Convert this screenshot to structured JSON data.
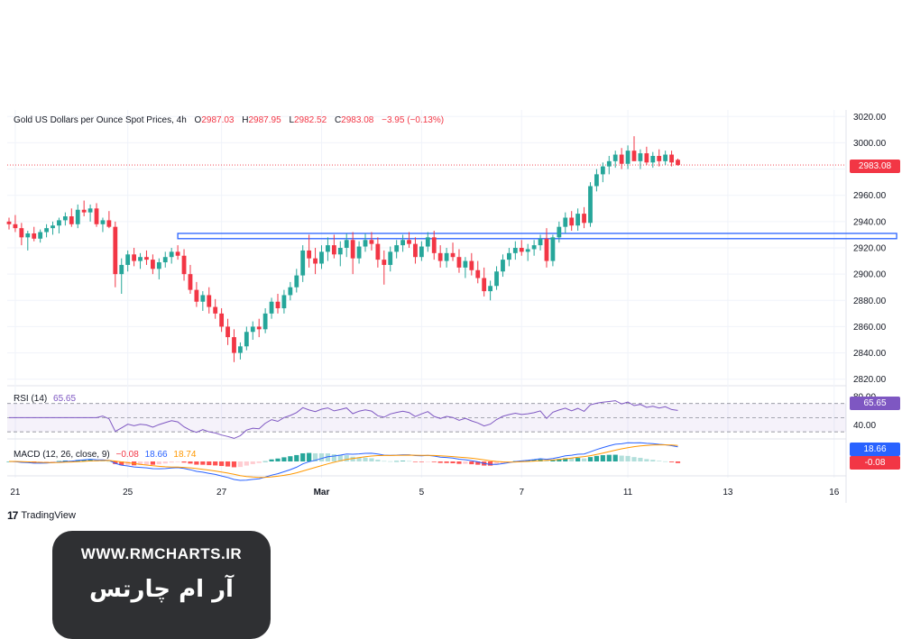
{
  "header": {
    "symbol": "Gold US Dollars per Ounce Spot Prices, 4h",
    "open_label": "O",
    "open": "2987.03",
    "high_label": "H",
    "high": "2987.95",
    "low_label": "L",
    "low": "2982.52",
    "close_label": "C",
    "close": "2983.08",
    "change": "−3.95 (−0.13%)"
  },
  "rsi": {
    "label": "RSI (14)",
    "value": "65.65"
  },
  "macd": {
    "label": "MACD (12, 26, close, 9)",
    "hist": "−0.08",
    "macd": "18.66",
    "signal": "18.74"
  },
  "price_tag": "2983.08",
  "rsi_tag": "65.65",
  "macd_tag": "18.66",
  "hist_tag": "-0.08",
  "branding": {
    "tv": "TradingView",
    "url": "WWW.RMCHARTS.IR",
    "fa": "آر ام چارتس"
  },
  "colors": {
    "up": "#26a69a",
    "down": "#f23645",
    "rsi": "#7e57c2",
    "macd": "#2962ff",
    "signal": "#ff9800",
    "zone": "#2962ff"
  },
  "chart_data": [
    {
      "type": "candlestick",
      "ylim": [
        2815,
        3025
      ],
      "y_ticks": [
        2820,
        2840,
        2860,
        2880,
        2900,
        2920,
        2940,
        2960,
        2980,
        3000,
        3020
      ],
      "y_tick_labels": [
        "2820.00",
        "2840.00",
        "2860.00",
        "2880.00",
        "2900.00",
        "2920.00",
        "2940.00",
        "2960.00",
        "2980.00",
        "3000.00",
        "3020.00"
      ],
      "x_tick_labels": [
        "21",
        "25",
        "27",
        "Mar",
        "5",
        "7",
        "11",
        "13",
        "16"
      ],
      "x_tick_bar_index": [
        1,
        19,
        34,
        50,
        66,
        82,
        99,
        115,
        132
      ],
      "resistance_zone": {
        "from": 2927,
        "to": 2931,
        "start_bar": 27,
        "end_bar": 142
      },
      "candles": [
        [
          2940,
          2943,
          2934,
          2938
        ],
        [
          2938,
          2945,
          2932,
          2935
        ],
        [
          2935,
          2939,
          2922,
          2928
        ],
        [
          2928,
          2933,
          2918,
          2931
        ],
        [
          2931,
          2936,
          2925,
          2927
        ],
        [
          2927,
          2934,
          2924,
          2932
        ],
        [
          2932,
          2938,
          2928,
          2935
        ],
        [
          2935,
          2940,
          2930,
          2937
        ],
        [
          2937,
          2943,
          2931,
          2941
        ],
        [
          2941,
          2947,
          2937,
          2944
        ],
        [
          2944,
          2950,
          2936,
          2938
        ],
        [
          2938,
          2953,
          2935,
          2949
        ],
        [
          2949,
          2956,
          2944,
          2947
        ],
        [
          2947,
          2953,
          2940,
          2950
        ],
        [
          2950,
          2954,
          2936,
          2938
        ],
        [
          2938,
          2943,
          2932,
          2941
        ],
        [
          2941,
          2948,
          2935,
          2936
        ],
        [
          2936,
          2940,
          2890,
          2900
        ],
        [
          2900,
          2912,
          2885,
          2907
        ],
        [
          2907,
          2918,
          2902,
          2915
        ],
        [
          2915,
          2920,
          2906,
          2910
        ],
        [
          2910,
          2916,
          2904,
          2913
        ],
        [
          2913,
          2918,
          2907,
          2911
        ],
        [
          2911,
          2915,
          2900,
          2904
        ],
        [
          2904,
          2912,
          2896,
          2909
        ],
        [
          2909,
          2917,
          2905,
          2913
        ],
        [
          2913,
          2920,
          2908,
          2917
        ],
        [
          2917,
          2922,
          2911,
          2914
        ],
        [
          2914,
          2919,
          2895,
          2900
        ],
        [
          2900,
          2907,
          2885,
          2888
        ],
        [
          2888,
          2894,
          2875,
          2879
        ],
        [
          2879,
          2887,
          2872,
          2884
        ],
        [
          2884,
          2890,
          2870,
          2875
        ],
        [
          2875,
          2881,
          2866,
          2870
        ],
        [
          2870,
          2874,
          2856,
          2860
        ],
        [
          2860,
          2866,
          2846,
          2852
        ],
        [
          2852,
          2858,
          2833,
          2840
        ],
        [
          2840,
          2848,
          2835,
          2845
        ],
        [
          2845,
          2860,
          2842,
          2856
        ],
        [
          2856,
          2864,
          2850,
          2860
        ],
        [
          2860,
          2866,
          2852,
          2858
        ],
        [
          2858,
          2874,
          2855,
          2870
        ],
        [
          2870,
          2882,
          2866,
          2879
        ],
        [
          2879,
          2885,
          2870,
          2874
        ],
        [
          2874,
          2888,
          2870,
          2884
        ],
        [
          2884,
          2894,
          2880,
          2890
        ],
        [
          2890,
          2904,
          2886,
          2899
        ],
        [
          2899,
          2922,
          2894,
          2918
        ],
        [
          2918,
          2930,
          2905,
          2912
        ],
        [
          2912,
          2920,
          2900,
          2908
        ],
        [
          2908,
          2922,
          2904,
          2917
        ],
        [
          2917,
          2928,
          2910,
          2922
        ],
        [
          2922,
          2930,
          2912,
          2915
        ],
        [
          2915,
          2925,
          2906,
          2920
        ],
        [
          2920,
          2931,
          2913,
          2926
        ],
        [
          2926,
          2932,
          2900,
          2912
        ],
        [
          2912,
          2925,
          2908,
          2921
        ],
        [
          2921,
          2931,
          2917,
          2926
        ],
        [
          2926,
          2932,
          2918,
          2923
        ],
        [
          2923,
          2928,
          2905,
          2911
        ],
        [
          2911,
          2918,
          2892,
          2907
        ],
        [
          2907,
          2921,
          2902,
          2917
        ],
        [
          2917,
          2926,
          2912,
          2922
        ],
        [
          2922,
          2930,
          2917,
          2926
        ],
        [
          2926,
          2932,
          2920,
          2923
        ],
        [
          2923,
          2928,
          2908,
          2913
        ],
        [
          2913,
          2925,
          2910,
          2921
        ],
        [
          2921,
          2932,
          2917,
          2928
        ],
        [
          2928,
          2933,
          2911,
          2916
        ],
        [
          2916,
          2922,
          2905,
          2910
        ],
        [
          2910,
          2920,
          2905,
          2916
        ],
        [
          2916,
          2924,
          2910,
          2913
        ],
        [
          2913,
          2919,
          2901,
          2905
        ],
        [
          2905,
          2913,
          2897,
          2910
        ],
        [
          2910,
          2916,
          2899,
          2903
        ],
        [
          2903,
          2910,
          2893,
          2897
        ],
        [
          2897,
          2905,
          2883,
          2887
        ],
        [
          2887,
          2895,
          2880,
          2891
        ],
        [
          2891,
          2906,
          2888,
          2902
        ],
        [
          2902,
          2915,
          2898,
          2911
        ],
        [
          2911,
          2920,
          2906,
          2916
        ],
        [
          2916,
          2925,
          2911,
          2920
        ],
        [
          2920,
          2926,
          2914,
          2917
        ],
        [
          2917,
          2923,
          2910,
          2919
        ],
        [
          2919,
          2926,
          2914,
          2922
        ],
        [
          2922,
          2930,
          2918,
          2927
        ],
        [
          2927,
          2935,
          2905,
          2910
        ],
        [
          2910,
          2930,
          2906,
          2928
        ],
        [
          2928,
          2940,
          2924,
          2936
        ],
        [
          2936,
          2947,
          2931,
          2943
        ],
        [
          2943,
          2948,
          2933,
          2937
        ],
        [
          2937,
          2950,
          2933,
          2946
        ],
        [
          2946,
          2951,
          2935,
          2939
        ],
        [
          2939,
          2970,
          2936,
          2967
        ],
        [
          2967,
          2980,
          2963,
          2976
        ],
        [
          2976,
          2985,
          2970,
          2982
        ],
        [
          2982,
          2990,
          2976,
          2986
        ],
        [
          2986,
          2994,
          2981,
          2991
        ],
        [
          2991,
          2996,
          2980,
          2984
        ],
        [
          2984,
          2998,
          2980,
          2994
        ],
        [
          2994,
          3005,
          2988,
          2986
        ],
        [
          2986,
          2995,
          2980,
          2992
        ],
        [
          2992,
          2997,
          2983,
          2985
        ],
        [
          2985,
          2993,
          2981,
          2990
        ],
        [
          2990,
          2995,
          2982,
          2986
        ],
        [
          2986,
          2994,
          2983,
          2991
        ],
        [
          2991,
          2994,
          2982,
          2985
        ],
        [
          2987.03,
          2987.95,
          2982.52,
          2983.08
        ]
      ]
    },
    {
      "type": "line",
      "name": "RSI (14)",
      "ylim": [
        20,
        90
      ],
      "levels": [
        70,
        50,
        30
      ],
      "tick_labels": [
        "80.00",
        "40.00"
      ],
      "ticks": [
        80,
        40
      ]
    },
    {
      "type": "histogram+lines",
      "name": "MACD (12, 26, close, 9)"
    }
  ]
}
